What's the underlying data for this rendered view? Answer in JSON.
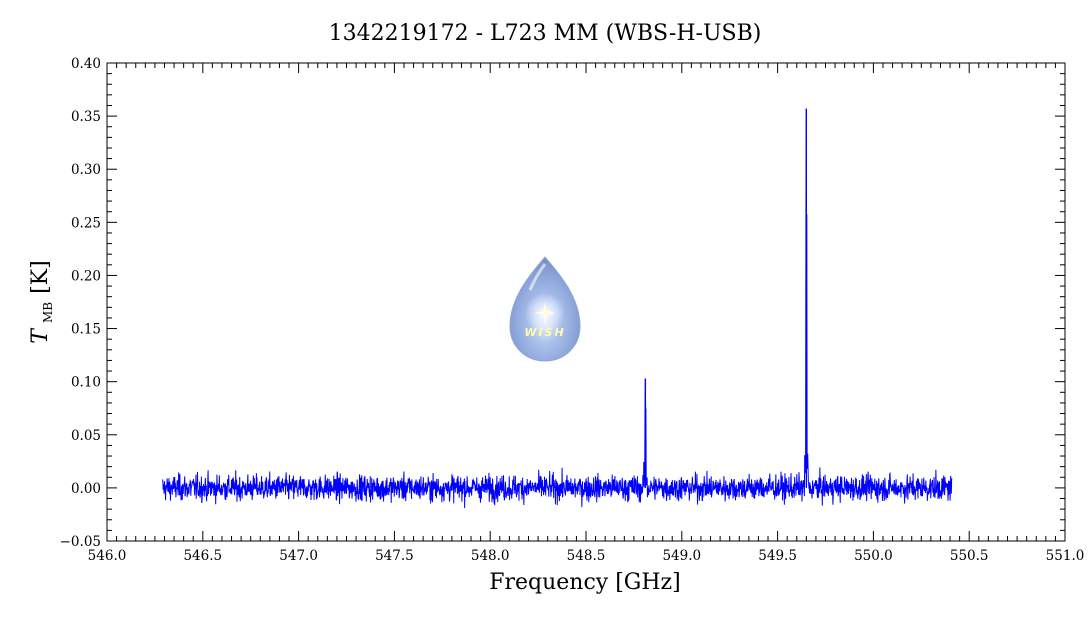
{
  "chart_data": {
    "type": "line",
    "title": "1342219172 - L723 MM (WBS-H-USB)",
    "xlabel": "Frequency [GHz]",
    "ylabel_main": "T",
    "ylabel_sub": "MB",
    "ylabel_unit": "[K]",
    "xlim": [
      546.0,
      551.0
    ],
    "ylim": [
      -0.05,
      0.4
    ],
    "x_ticks": [
      "546.0",
      "546.5",
      "547.0",
      "547.5",
      "548.0",
      "548.5",
      "549.0",
      "549.5",
      "550.0",
      "550.5",
      "551.0"
    ],
    "y_ticks": [
      "−0.05",
      "0.00",
      "0.05",
      "0.10",
      "0.15",
      "0.20",
      "0.25",
      "0.30",
      "0.35",
      "0.40"
    ],
    "grid": false,
    "series": [
      {
        "color": "#0000ff",
        "x_start": 546.29,
        "x_end": 550.41,
        "baseline": 0.0,
        "noise_rms": 0.006,
        "peaks": [
          {
            "x": 548.81,
            "y": 0.103
          },
          {
            "x": 549.65,
            "y": 0.357
          }
        ]
      }
    ]
  },
  "logo": {
    "label": "WISH",
    "icon": "water-drop-star-icon"
  }
}
